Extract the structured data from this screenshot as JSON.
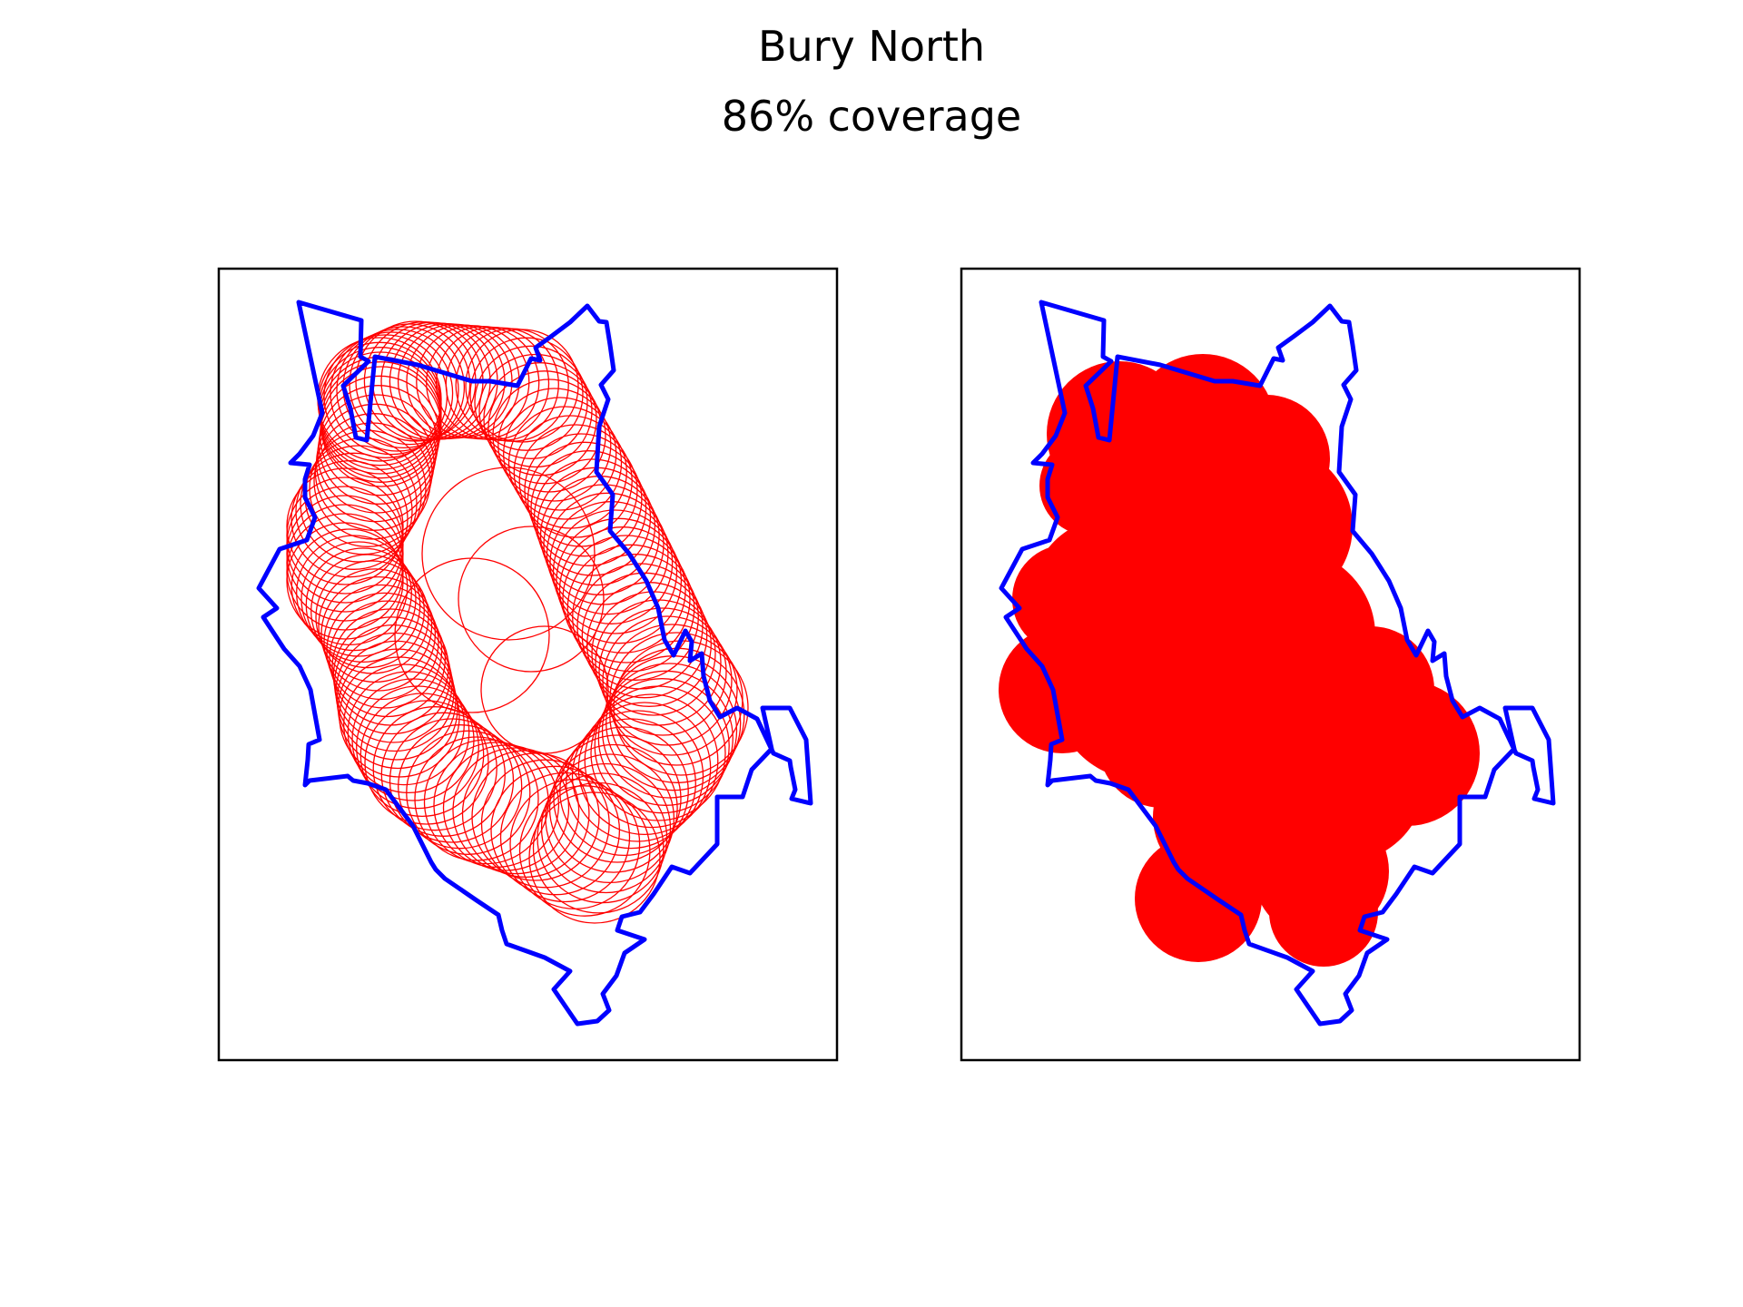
{
  "figure": {
    "title": "Bury North",
    "subtitle": "86% coverage"
  },
  "colors": {
    "boundary": "#0000ff",
    "coverage": "#ff0000",
    "frame": "#000000",
    "background": "#ffffff"
  },
  "panels": [
    {
      "id": "left",
      "style": "outlined-circles"
    },
    {
      "id": "right",
      "style": "filled-coverage"
    }
  ]
}
